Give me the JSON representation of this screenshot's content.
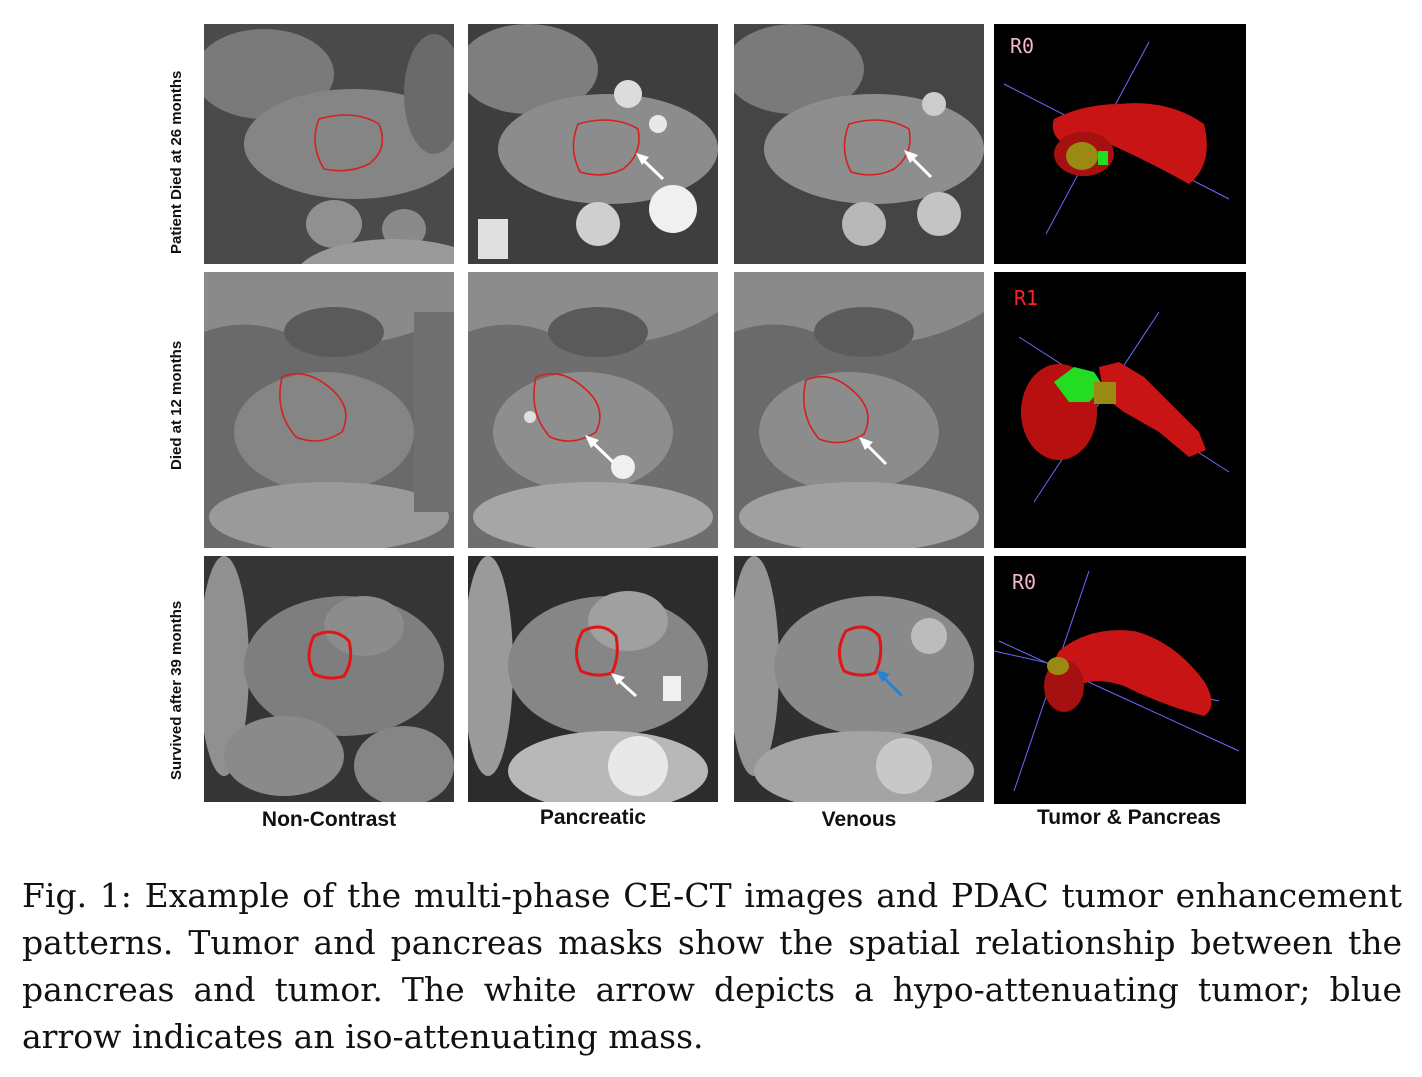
{
  "figure": {
    "rows": [
      {
        "label": "Patient Died at 26 months",
        "margin": "R0",
        "margin_color": "#f2b8c4"
      },
      {
        "label": "Died at 12 months",
        "margin": "R1",
        "margin_color": "#ff2222"
      },
      {
        "label": "Survived after 39 months",
        "margin": "R0",
        "margin_color": "#f2b8c4"
      }
    ],
    "columns": [
      {
        "label": "Non-Contrast"
      },
      {
        "label": "Pancreatic"
      },
      {
        "label": "Venous"
      },
      {
        "label": "Tumor & Pancreas"
      }
    ],
    "colors": {
      "contour": "#d62020",
      "hypo_arrow": "#ffffff",
      "iso_arrow": "#2a7fd4",
      "mask_pancreas": "#c81414",
      "mask_tumor": "#9a8a14",
      "mask_margin": "#22dd22",
      "axis_lines": "#6a6aff"
    }
  },
  "caption": {
    "text": "Fig. 1: Example of the multi-phase CE-CT images and PDAC tumor enhancement patterns. Tumor and pancreas masks show the spatial relationship between the pancreas and tumor. The white arrow depicts a hypo-attenuating tumor; blue arrow indicates an iso-attenuating mass."
  }
}
